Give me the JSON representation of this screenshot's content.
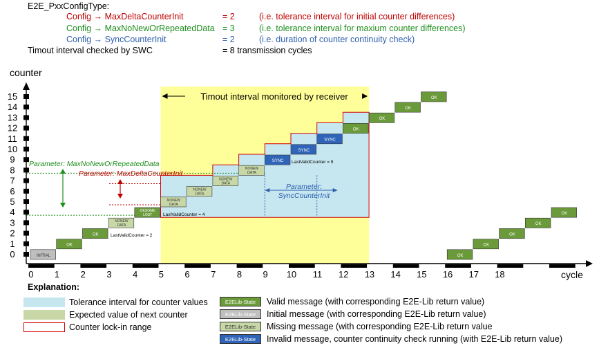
{
  "header": {
    "title": "E2E_PxxConfigType:",
    "config_rows": [
      {
        "param": "Config → MaxDeltaCounterInit",
        "value": "= 2",
        "note": "(i.e. tolerance interval for initial counter differences)",
        "color": "#c00000"
      },
      {
        "param": "Config → MaxNoNewOrRepeatedData",
        "value": "= 3",
        "note": "(i.e. tolerance interval for maxium counter differences)",
        "color": "#1d8f1d"
      },
      {
        "param": "Config → SyncCounterInit",
        "value": "= 2",
        "note": "(i.e. duration of counter continuity check)",
        "color": "#2e5fae"
      }
    ],
    "timeout_label": "Timout interval checked by SWC",
    "timeout_value": "= 8 transmission cycles"
  },
  "diagram": {
    "y_axis_label": "counter",
    "x_axis_label": "cycle",
    "y_ticks": [
      "0",
      "1",
      "2",
      "3",
      "4",
      "5",
      "6",
      "7",
      "8",
      "9",
      "10",
      "11",
      "12",
      "13",
      "14",
      "15"
    ],
    "x_ticks": [
      "0",
      "1",
      "2",
      "3",
      "4",
      "5",
      "6",
      "7",
      "8",
      "9",
      "10",
      "11",
      "12",
      "13",
      "14",
      "15",
      "16",
      "17",
      "18"
    ],
    "timeout_banner": "Timout interval monitored by receiver",
    "param_green": "Parameter: MaxNoNewOrRepeatedData",
    "param_red": "Parameter: MaxDeltaCounterInit",
    "param_blue_line1": "Parameter:",
    "param_blue_line2": "SyncCounterInit",
    "last_valid_2": "LastValidCounter = 2",
    "last_valid_4": "LastValidCounter = 4",
    "last_valid_9": "LastValidCounter = 9",
    "steps": [
      {
        "cycle": 0,
        "counter": 0,
        "state": "initial",
        "label": "INITIAL"
      },
      {
        "cycle": 1,
        "counter": 1,
        "state": "ok",
        "label": "OK"
      },
      {
        "cycle": 2,
        "counter": 2,
        "state": "ok",
        "label": "OK"
      },
      {
        "cycle": 3,
        "counter": 3,
        "state": "nonew",
        "label": "NONEW DATA"
      },
      {
        "cycle": 4,
        "counter": 4,
        "state": "ok",
        "label": "OKSOME LOST"
      },
      {
        "cycle": 5,
        "counter": 5,
        "state": "nonew",
        "label": "NONEW DATA"
      },
      {
        "cycle": 6,
        "counter": 6,
        "state": "nonew",
        "label": "NONEW DATA"
      },
      {
        "cycle": 7,
        "counter": 7,
        "state": "nonew",
        "label": "NONEW DATA"
      },
      {
        "cycle": 8,
        "counter": 8,
        "state": "nonew",
        "label": "NONEW DATA"
      },
      {
        "cycle": 9,
        "counter": 9,
        "state": "sync",
        "label": "SYNC"
      },
      {
        "cycle": 10,
        "counter": 10,
        "state": "sync",
        "label": "SYNC"
      },
      {
        "cycle": 11,
        "counter": 11,
        "state": "sync",
        "label": "SYNC"
      },
      {
        "cycle": 12,
        "counter": 12,
        "state": "ok",
        "label": "OK"
      },
      {
        "cycle": 13,
        "counter": 13,
        "state": "ok",
        "label": "OK"
      },
      {
        "cycle": 14,
        "counter": 14,
        "state": "ok",
        "label": "OK"
      },
      {
        "cycle": 15,
        "counter": 15,
        "state": "ok",
        "label": "OK"
      },
      {
        "cycle": 16,
        "counter": 0,
        "state": "ok",
        "label": "OK"
      },
      {
        "cycle": 17,
        "counter": 1,
        "state": "ok",
        "label": "OK"
      },
      {
        "cycle": 18,
        "counter": 2,
        "state": "ok",
        "label": "OK"
      },
      {
        "cycle": 19,
        "counter": 3,
        "state": "ok",
        "label": "OK"
      },
      {
        "cycle": 20,
        "counter": 4,
        "state": "ok",
        "label": "OK"
      }
    ],
    "colors": {
      "yellow": "#ffff99",
      "tolerance": "#c6e6f0",
      "ok": "#6b9a3a",
      "initial": "#bfbfbf",
      "nonew": "#c7d7a6",
      "sync": "#2f64b8",
      "lockin": "#d00000"
    }
  },
  "legend": {
    "title": "Explanation:",
    "left_items": [
      {
        "label": "Tolerance interval for counter values",
        "swatch": "tolerance"
      },
      {
        "label": "Expected value of next counter",
        "swatch": "nonew"
      },
      {
        "label": "Counter lock-in range",
        "swatch": "lockin"
      }
    ],
    "state_tag": "E2ELib-State",
    "right_items": [
      {
        "label": "Valid message (with corresponding E2E-Lib return value)",
        "swatch": "ok"
      },
      {
        "label": "Initial message (with corresponding E2E-Lib return value)",
        "swatch": "initial"
      },
      {
        "label": "Missing message (with corresponding E2E-Lib return value",
        "swatch": "nonew"
      },
      {
        "label": "Invalid message, counter continuity check running (with E2E-Lib return value)",
        "swatch": "sync"
      }
    ]
  }
}
